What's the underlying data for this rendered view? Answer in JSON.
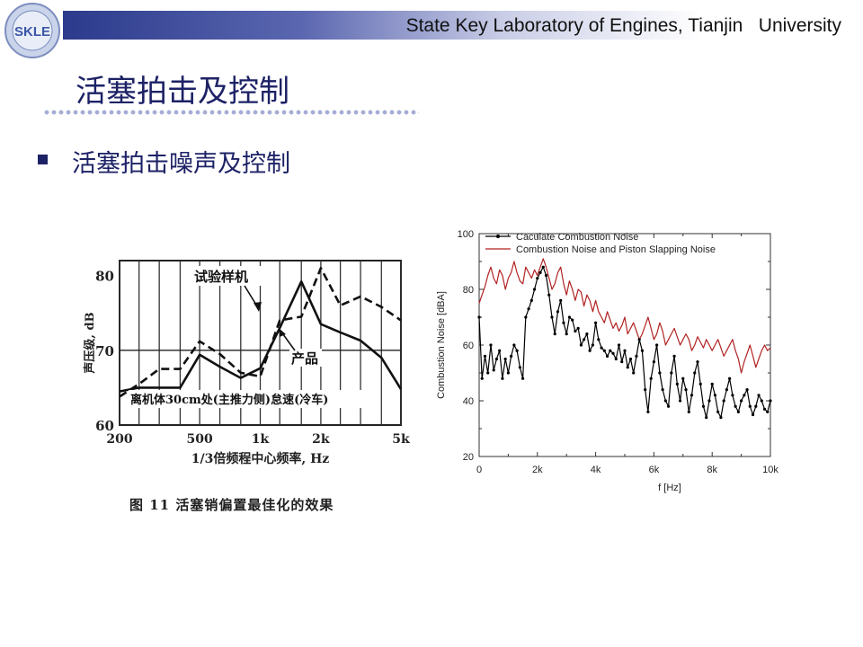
{
  "header": {
    "title": "State Key Laboratory of Engines, Tianjin   University",
    "logo_text": "SKLE"
  },
  "page_title": "活塞拍击及控制",
  "bullet": "活塞拍击噪声及控制",
  "left_figure": {
    "caption": "图 11   活塞销偏置最佳化的效果",
    "xlabel": "1/3倍频程中心频率, Hz",
    "ylabel": "声压级, dB",
    "annotation_test": "试验样机",
    "annotation_product": "产品",
    "condition": "离机体30cm处(主推力侧)怠速(冷车)"
  },
  "chart_data": [
    {
      "type": "line",
      "xlabel": "1/3倍频程中心频率, Hz",
      "ylabel": "声压级, dB",
      "yticks": [
        "80",
        "70",
        "60"
      ],
      "xticks": [
        "200",
        "500",
        "1k",
        "2k",
        "5k"
      ],
      "ylim": [
        60,
        82
      ],
      "grid": true,
      "series": [
        {
          "name": "试验样机",
          "style": "dashed",
          "x": [
            200,
            250,
            315,
            400,
            500,
            630,
            800,
            1000,
            1250,
            1600,
            2000,
            2500,
            3150,
            4000,
            5000
          ],
          "y": [
            63.8,
            65.5,
            67.5,
            67.5,
            71.2,
            69.5,
            67,
            66.5,
            74,
            74.5,
            81,
            76,
            77.2,
            75.8,
            74
          ]
        },
        {
          "name": "产品",
          "style": "solid",
          "x": [
            200,
            250,
            315,
            400,
            500,
            630,
            800,
            1000,
            1250,
            1600,
            2000,
            2500,
            3150,
            4000,
            5000
          ],
          "y": [
            64.5,
            65,
            65,
            65,
            69.4,
            67.8,
            66.3,
            67.6,
            73,
            79.2,
            73.5,
            72.4,
            71.3,
            69,
            64.8
          ]
        }
      ]
    },
    {
      "type": "line",
      "xlabel": "f [Hz]",
      "ylabel": "Combustion Noise [dBA]",
      "xticks": [
        "0",
        "2k",
        "4k",
        "6k",
        "8k",
        "10k"
      ],
      "yticks": [
        "20",
        "40",
        "60",
        "80",
        "100"
      ],
      "xlim": [
        0,
        10000
      ],
      "ylim": [
        20,
        100
      ],
      "legend": "top-left",
      "series": [
        {
          "name": "Caculate Combustion Noise",
          "color": "#000000",
          "x": [
            0,
            100,
            200,
            300,
            400,
            500,
            600,
            700,
            800,
            900,
            1000,
            1100,
            1200,
            1300,
            1400,
            1500,
            1600,
            1700,
            1800,
            1900,
            2000,
            2100,
            2200,
            2300,
            2400,
            2500,
            2600,
            2700,
            2800,
            2900,
            3000,
            3100,
            3200,
            3300,
            3400,
            3500,
            3600,
            3700,
            3800,
            3900,
            4000,
            4100,
            4200,
            4300,
            4400,
            4500,
            4600,
            4700,
            4800,
            4900,
            5000,
            5100,
            5200,
            5300,
            5400,
            5500,
            5600,
            5700,
            5800,
            5900,
            6000,
            6100,
            6200,
            6300,
            6400,
            6500,
            6600,
            6700,
            6800,
            6900,
            7000,
            7100,
            7200,
            7300,
            7400,
            7500,
            7600,
            7700,
            7800,
            7900,
            8000,
            8100,
            8200,
            8300,
            8400,
            8500,
            8600,
            8700,
            8800,
            8900,
            9000,
            9100,
            9200,
            9300,
            9400,
            9500,
            9600,
            9700,
            9800,
            9900,
            10000
          ],
          "y": [
            70,
            48,
            56,
            50,
            60,
            51,
            55,
            58,
            48,
            55,
            50,
            56,
            60,
            58,
            52,
            48,
            70,
            73,
            76,
            80,
            84,
            86,
            88,
            85,
            78,
            70,
            64,
            72,
            76,
            68,
            64,
            70,
            69,
            65,
            66,
            60,
            62,
            64,
            58,
            60,
            68,
            62,
            59,
            58,
            56,
            58,
            57,
            55,
            60,
            54,
            58,
            52,
            55,
            50,
            56,
            62,
            58,
            44,
            36,
            48,
            54,
            60,
            50,
            44,
            40,
            38,
            50,
            56,
            46,
            40,
            48,
            44,
            36,
            42,
            50,
            54,
            46,
            38,
            34,
            40,
            46,
            42,
            36,
            34,
            40,
            44,
            48,
            42,
            38,
            36,
            40,
            42,
            44,
            38,
            35,
            38,
            42,
            40,
            37,
            36,
            40
          ]
        },
        {
          "name": "Combustion Noise and Piston Slapping Noise",
          "color": "#b22222",
          "x": [
            0,
            100,
            200,
            300,
            400,
            500,
            600,
            700,
            800,
            900,
            1000,
            1100,
            1200,
            1300,
            1400,
            1500,
            1600,
            1700,
            1800,
            1900,
            2000,
            2100,
            2200,
            2300,
            2400,
            2500,
            2600,
            2700,
            2800,
            2900,
            3000,
            3100,
            3200,
            3300,
            3400,
            3500,
            3600,
            3700,
            3800,
            3900,
            4000,
            4100,
            4200,
            4300,
            4400,
            4500,
            4600,
            4700,
            4800,
            4900,
            5000,
            5100,
            5200,
            5300,
            5400,
            5500,
            5600,
            5700,
            5800,
            5900,
            6000,
            6100,
            6200,
            6300,
            6400,
            6500,
            6600,
            6700,
            6800,
            6900,
            7000,
            7100,
            7200,
            7300,
            7400,
            7500,
            7600,
            7700,
            7800,
            7900,
            8000,
            8100,
            8200,
            8300,
            8400,
            8500,
            8600,
            8700,
            8800,
            8900,
            9000,
            9100,
            9200,
            9300,
            9400,
            9500,
            9600,
            9700,
            9800,
            9900,
            10000
          ],
          "y": [
            75,
            78,
            81,
            85,
            88,
            84,
            82,
            87,
            85,
            80,
            84,
            86,
            90,
            86,
            83,
            82,
            88,
            86,
            84,
            87,
            85,
            88,
            91,
            88,
            84,
            80,
            82,
            86,
            88,
            82,
            78,
            83,
            80,
            76,
            80,
            79,
            74,
            78,
            76,
            72,
            76,
            72,
            70,
            68,
            72,
            69,
            66,
            68,
            65,
            67,
            70,
            64,
            66,
            68,
            65,
            62,
            64,
            67,
            70,
            66,
            62,
            64,
            68,
            65,
            60,
            62,
            64,
            66,
            63,
            60,
            62,
            64,
            62,
            58,
            60,
            63,
            61,
            59,
            62,
            60,
            58,
            60,
            62,
            59,
            56,
            58,
            60,
            62,
            58,
            55,
            50,
            54,
            57,
            60,
            56,
            52,
            55,
            58,
            60,
            58,
            59
          ]
        }
      ]
    }
  ]
}
